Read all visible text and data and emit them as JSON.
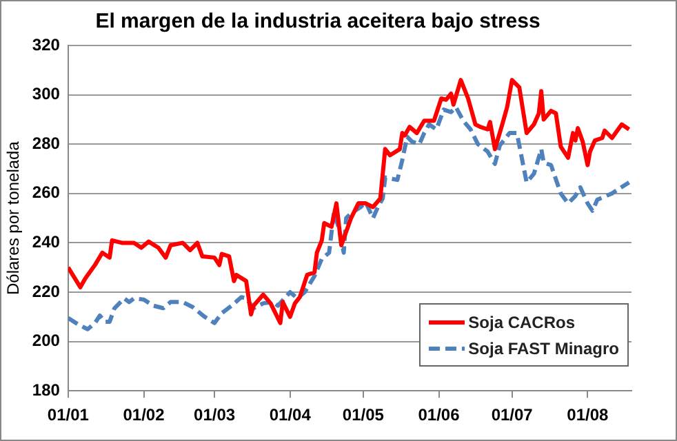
{
  "chart_data": {
    "type": "line",
    "title": "El margen de la industria aceitera bajo stress",
    "ylabel": "Dólares por tonelada",
    "xlim": [
      "--01-01",
      "--08-19"
    ],
    "xticks": [
      {
        "value": "--01-01",
        "label": "01/01"
      },
      {
        "value": "--02-01",
        "label": "01/02"
      },
      {
        "value": "--03-01",
        "label": "01/03"
      },
      {
        "value": "--04-01",
        "label": "01/04"
      },
      {
        "value": "--05-01",
        "label": "01/05"
      },
      {
        "value": "--06-01",
        "label": "01/06"
      },
      {
        "value": "--07-01",
        "label": "01/07"
      },
      {
        "value": "--08-01",
        "label": "01/08"
      }
    ],
    "ylim": [
      180,
      320
    ],
    "yticks": [
      180,
      200,
      220,
      240,
      260,
      280,
      300,
      320
    ],
    "grid": "y",
    "legend": "bottom right",
    "marker": "none",
    "series": [
      {
        "name": "Soja CACRos",
        "color": "#ff0000",
        "line_style": "solid",
        "x": [
          "--01-01",
          "--01-06",
          "--01-08",
          "--01-12",
          "--01-15",
          "--01-18",
          "--01-19",
          "--01-23",
          "--01-28",
          "--01-31",
          "--02-03",
          "--02-07",
          "--02-10",
          "--02-12",
          "--02-17",
          "--02-20",
          "--02-23",
          "--02-25",
          "--03-01",
          "--03-03",
          "--03-04",
          "--03-07",
          "--03-09",
          "--03-10",
          "--03-14",
          "--03-16",
          "--03-17",
          "--03-21",
          "--03-24",
          "--03-28",
          "--03-29",
          "--04-01",
          "--04-03",
          "--04-05",
          "--04-08",
          "--04-11",
          "--04-12",
          "--04-14",
          "--04-15",
          "--04-18",
          "--04-20",
          "--04-22",
          "--04-26",
          "--04-29",
          "--05-02",
          "--05-05",
          "--05-08",
          "--05-10",
          "--05-12",
          "--05-16",
          "--05-17",
          "--05-18",
          "--05-20",
          "--05-23",
          "--05-26",
          "--05-30",
          "--06-02",
          "--06-04",
          "--06-06",
          "--06-07",
          "--06-10",
          "--06-13",
          "--06-16",
          "--06-18",
          "--06-21",
          "--06-22",
          "--06-24",
          "--06-27",
          "--06-29",
          "--07-01",
          "--07-04",
          "--07-07",
          "--07-10",
          "--07-12",
          "--07-13",
          "--07-14",
          "--07-17",
          "--07-19",
          "--07-21",
          "--07-24",
          "--07-26",
          "--07-27",
          "--07-28",
          "--07-30",
          "--08-01",
          "--08-02",
          "--08-04",
          "--08-07",
          "--08-08",
          "--08-11",
          "--08-15",
          "--08-18"
        ],
        "values": [
          230,
          222,
          225.5,
          231,
          236,
          234,
          241,
          240,
          240,
          238,
          240.5,
          238,
          234,
          239,
          240,
          237,
          240,
          234.5,
          234,
          231,
          235.5,
          234.5,
          224.5,
          227,
          224.5,
          211,
          214.5,
          219,
          215.5,
          207.5,
          216,
          210,
          215.5,
          218,
          227,
          228,
          236,
          241,
          248,
          246.5,
          256,
          239,
          250,
          256,
          256,
          254.5,
          258,
          278,
          275.5,
          278,
          284.5,
          283.5,
          287,
          284.5,
          289.5,
          289.5,
          298.5,
          298,
          300.5,
          296,
          306,
          298.5,
          288,
          287,
          286,
          289,
          278,
          288,
          295,
          306,
          303,
          284.5,
          288,
          292.5,
          301.5,
          290,
          293.5,
          292.5,
          279,
          274.5,
          284.5,
          281.5,
          286.5,
          281,
          271.5,
          277,
          281.5,
          282.5,
          285.5,
          282.5,
          288,
          286
        ]
      },
      {
        "name": "Soja FAST Minagro",
        "color": "#4f81bd",
        "line_style": "dashed",
        "x": [
          "--01-01",
          "--01-05",
          "--01-09",
          "--01-12",
          "--01-14",
          "--01-16",
          "--01-18",
          "--01-20",
          "--01-24",
          "--01-26",
          "--01-28",
          "--02-01",
          "--02-05",
          "--02-09",
          "--02-12",
          "--02-17",
          "--02-21",
          "--02-26",
          "--03-01",
          "--03-04",
          "--03-08",
          "--03-12",
          "--03-14",
          "--03-17",
          "--03-21",
          "--03-25",
          "--03-27",
          "--04-01",
          "--04-04",
          "--04-07",
          "--04-11",
          "--04-14",
          "--04-17",
          "--04-19",
          "--04-21",
          "--04-23",
          "--04-24",
          "--04-26",
          "--04-30",
          "--05-02",
          "--05-05",
          "--05-07",
          "--05-09",
          "--05-10",
          "--05-15",
          "--05-17",
          "--05-19",
          "--05-21",
          "--05-24",
          "--05-26",
          "--05-28",
          "--05-31",
          "--06-03",
          "--06-06",
          "--06-08",
          "--06-11",
          "--06-14",
          "--06-17",
          "--06-21",
          "--06-24",
          "--06-26",
          "--06-30",
          "--07-03",
          "--07-07",
          "--07-10",
          "--07-13",
          "--07-14",
          "--07-17",
          "--07-21",
          "--07-24",
          "--07-27",
          "--07-29",
          "--08-01",
          "--08-03",
          "--08-05",
          "--08-11",
          "--08-14",
          "--08-18"
        ],
        "values": [
          209.5,
          207,
          205,
          207.5,
          210.5,
          208,
          208,
          213.5,
          217.5,
          216,
          217.5,
          217,
          214.5,
          213.5,
          216,
          216,
          214,
          210,
          207.5,
          211.5,
          214.5,
          218,
          217.5,
          213.5,
          215.5,
          216,
          214.5,
          220,
          217.5,
          220,
          226.5,
          233.5,
          236,
          252.5,
          246,
          236,
          250,
          252,
          254.5,
          256.5,
          250,
          254.5,
          258,
          266.5,
          265.5,
          273.5,
          283,
          281,
          280,
          284.5,
          288,
          286,
          294,
          293,
          295,
          289.5,
          286,
          280,
          277,
          272,
          279.5,
          284.5,
          284.5,
          264.5,
          268,
          278,
          272.5,
          271.5,
          260,
          256,
          259,
          262.5,
          256,
          253,
          257.5,
          260,
          262,
          264.5
        ]
      }
    ]
  }
}
